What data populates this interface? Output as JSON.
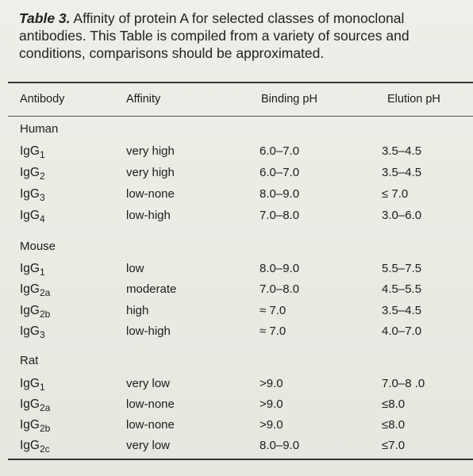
{
  "caption": {
    "label": "Table 3.",
    "text": " Affinity of protein A for selected classes of monoclonal antibodies. This Table is compiled from a variety of sources and conditions, comparisons should be approximated."
  },
  "table": {
    "headers": [
      "Antibody",
      "Affinity",
      "Binding pH",
      "Elution pH"
    ],
    "groups": [
      {
        "name": "Human",
        "rows": [
          {
            "base": "IgG",
            "sub": "1",
            "affinity": "very high",
            "binding": "6.0–7.0",
            "elution": "3.5–4.5"
          },
          {
            "base": "IgG",
            "sub": "2",
            "affinity": "very high",
            "binding": "6.0–7.0",
            "elution": "3.5–4.5"
          },
          {
            "base": "IgG",
            "sub": "3",
            "affinity": "low-none",
            "binding": "8.0–9.0",
            "elution": "≤ 7.0"
          },
          {
            "base": "IgG",
            "sub": "4",
            "affinity": "low-high",
            "binding": "7.0–8.0",
            "elution": "3.0–6.0"
          }
        ]
      },
      {
        "name": "Mouse",
        "rows": [
          {
            "base": "IgG",
            "sub": "1",
            "affinity": "low",
            "binding": "8.0–9.0",
            "elution": "5.5–7.5"
          },
          {
            "base": "IgG",
            "sub": "2a",
            "affinity": "moderate",
            "binding": "7.0–8.0",
            "elution": "4.5–5.5"
          },
          {
            "base": "IgG",
            "sub": "2b",
            "affinity": "high",
            "binding": "≈ 7.0",
            "elution": "3.5–4.5"
          },
          {
            "base": "IgG",
            "sub": "3",
            "affinity": "low-high",
            "binding": "≈ 7.0",
            "elution": "4.0–7.0"
          }
        ]
      },
      {
        "name": "Rat",
        "rows": [
          {
            "base": "IgG",
            "sub": "1",
            "affinity": "very low",
            "binding": ">9.0",
            "elution": "7.0–8 .0"
          },
          {
            "base": "IgG",
            "sub": "2a",
            "affinity": "low-none",
            "binding": ">9.0",
            "elution": "≤8.0"
          },
          {
            "base": "IgG",
            "sub": "2b",
            "affinity": "low-none",
            "binding": ">9.0",
            "elution": "≤8.0"
          },
          {
            "base": "IgG",
            "sub": "2c",
            "affinity": "very low",
            "binding": "8.0–9.0",
            "elution": "≤7.0"
          }
        ]
      }
    ]
  }
}
